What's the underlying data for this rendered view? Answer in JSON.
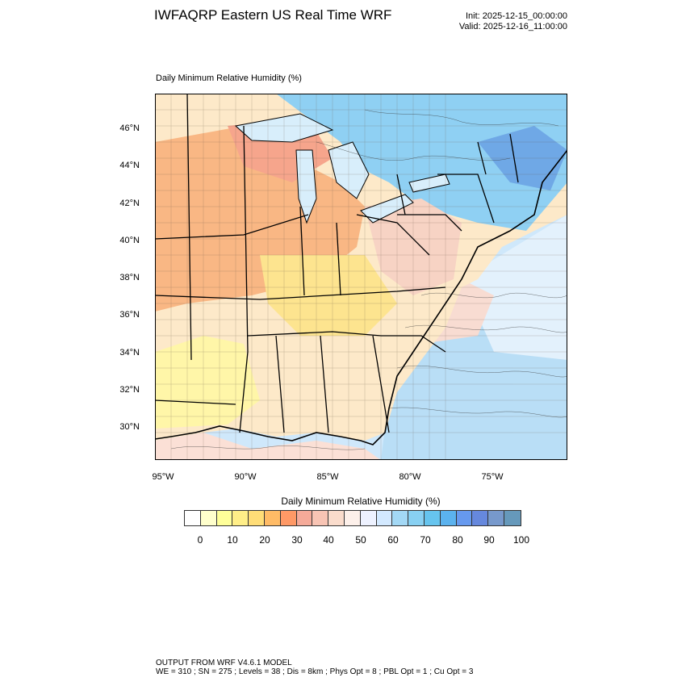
{
  "header": {
    "title": "IWFAQRP Eastern US Real Time WRF",
    "init": "Init: 2025-12-15_00:00:00",
    "valid": "Valid: 2025-12-16_11:00:00"
  },
  "map": {
    "title": "Daily Minimum Relative Humidity   (%)",
    "lat_labels": [
      "46°N",
      "44°N",
      "42°N",
      "40°N",
      "38°N",
      "36°N",
      "34°N",
      "32°N",
      "30°N"
    ],
    "lon_labels": [
      "95°W",
      "90°W",
      "85°W",
      "80°W",
      "75°W"
    ]
  },
  "colorbar": {
    "title": "Daily Minimum Relative Humidity  (%)",
    "tick_labels": [
      "0",
      "10",
      "20",
      "30",
      "40",
      "50",
      "60",
      "70",
      "80",
      "90",
      "100"
    ],
    "colors": [
      "#ffffff",
      "#ffffcc",
      "#ffff99",
      "#ffee88",
      "#ffdd77",
      "#ffbb66",
      "#ff9966",
      "#f5aa99",
      "#f8c4b4",
      "#fadccc",
      "#fdf0ea",
      "#eef2ff",
      "#d3e9ff",
      "#a3d8f5",
      "#88d0f2",
      "#66c4ee",
      "#5bb2ee",
      "#6699ee",
      "#6688dd",
      "#7799cc",
      "#6699bb"
    ]
  },
  "footer": {
    "line1": "OUTPUT FROM WRF V4.6.1 MODEL",
    "line2": "WE = 310 ; SN = 275 ; Levels = 38 ; Dis = 8km ; Phys Opt = 8 ; PBL Opt = 1 ; Cu Opt = 3"
  }
}
